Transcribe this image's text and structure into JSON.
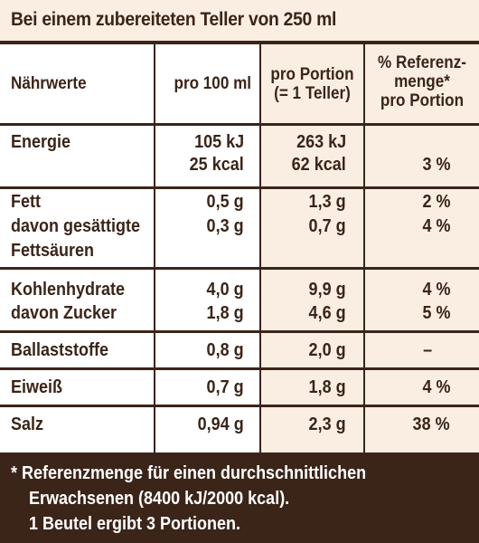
{
  "headline": "Bei einem zubereiteten Teller von 250 ml",
  "header": {
    "col1": "Nährwerte",
    "col2": "pro 100 ml",
    "col3_line1": "pro Portion",
    "col3_line2": "(= 1 Teller)",
    "col4_line1": "% Referenz-",
    "col4_line2": "menge*",
    "col4_line3": "pro Portion"
  },
  "rows": {
    "energie": {
      "label": "Energie",
      "per100_kj": "105 kJ",
      "per100_kcal": "25 kcal",
      "portion_kj": "263 kJ",
      "portion_kcal": "62 kcal",
      "ref": "3 %"
    },
    "fett": {
      "label": "Fett",
      "per100": "0,5 g",
      "portion": "1,3 g",
      "ref": "2 %",
      "sub_label_1": "davon gesättigte",
      "sub_label_2": "Fettsäuren",
      "sub_per100": "0,3 g",
      "sub_portion": "0,7 g",
      "sub_ref": "4 %"
    },
    "kohlenhydrate": {
      "label": "Kohlenhydrate",
      "per100": "4,0 g",
      "portion": "9,9 g",
      "ref": "4 %",
      "sub_label": "davon Zucker",
      "sub_per100": "1,8 g",
      "sub_portion": "4,6 g",
      "sub_ref": "5 %"
    },
    "ballaststoffe": {
      "label": "Ballaststoffe",
      "per100": "0,8 g",
      "portion": "2,0 g",
      "ref": "–"
    },
    "eiweiss": {
      "label": "Eiweiß",
      "per100": "0,7 g",
      "portion": "1,8 g",
      "ref": "4 %"
    },
    "salz": {
      "label": "Salz",
      "per100": "0,94 g",
      "portion": "2,3 g",
      "ref": "38 %"
    }
  },
  "footer": {
    "line1": "* Referenzmenge für einen durchschnittlichen",
    "line2": "Erwachsenen (8400 kJ/2000 kcal).",
    "line3": "1 Beutel ergibt 3 Portionen."
  },
  "colors": {
    "brown": "#3b2418",
    "cream": "#faeee2",
    "white": "#ffffff"
  }
}
